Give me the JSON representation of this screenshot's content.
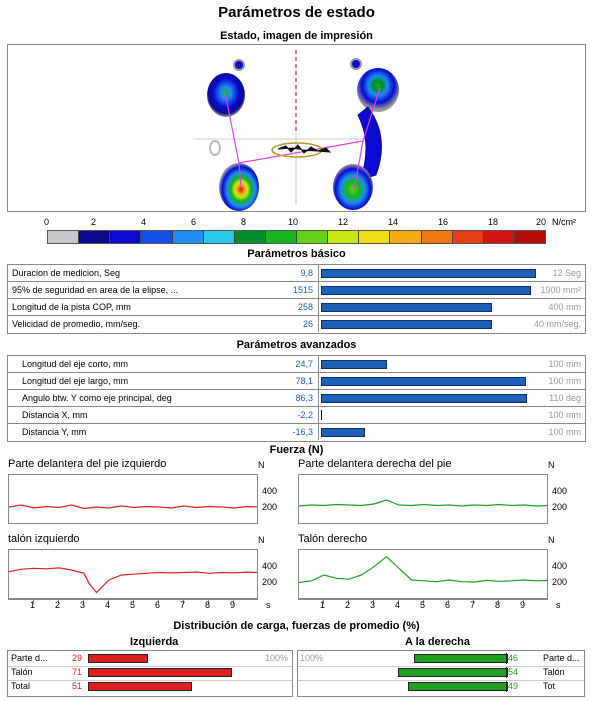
{
  "title": "Parámetros de estado",
  "print_image": {
    "label": "Estado, imagen de impresión"
  },
  "scale": {
    "ticks": [
      "0",
      "2",
      "4",
      "6",
      "8",
      "10",
      "12",
      "14",
      "16",
      "18",
      "20"
    ],
    "unit": "N/cm²",
    "colors": [
      "#c8c8c8",
      "#0a0a8c",
      "#0a0ad2",
      "#1450e6",
      "#1e8cf0",
      "#28c8e6",
      "#008c28",
      "#14b41e",
      "#64d214",
      "#c8e614",
      "#f0dc14",
      "#f5aa14",
      "#f07814",
      "#e63c14",
      "#d21414",
      "#b40a0a"
    ]
  },
  "basic": {
    "heading": "Parámetros básico",
    "rows": [
      {
        "label": "Duracion de medicion, Seg",
        "value": "9,8",
        "max": "12 Seg",
        "fill": 0.82
      },
      {
        "label": "95% de seguridad en area de la elipse, ...",
        "value": "1515",
        "max": "1900 mm²",
        "fill": 0.8
      },
      {
        "label": "Longitud de la pista COP, mm",
        "value": "258",
        "max": "400 mm",
        "fill": 0.65
      },
      {
        "label": "Velicidad de promedio, mm/seg.",
        "value": "26",
        "max": "40 mm/seg.",
        "fill": 0.65
      }
    ]
  },
  "advanced": {
    "heading": "Parámetros avanzados",
    "rows": [
      {
        "label": "Longitud del eje corto, mm",
        "value": "24,7",
        "max": "100 mm",
        "fill": 0.247
      },
      {
        "label": "Longitud del eje largo, mm",
        "value": "78,1",
        "max": "100 mm",
        "fill": 0.781
      },
      {
        "label": "Angulo btw. Y como eje principal, deg",
        "value": "86,3",
        "max": "110 deg",
        "fill": 0.785
      },
      {
        "label": "Distancia X, mm",
        "value": "-2,2",
        "max": "100 mm",
        "fill": 0.022
      },
      {
        "label": "Distancia Y, mm",
        "value": "-16,3",
        "max": "100 mm",
        "fill": 0.163
      }
    ]
  },
  "force": {
    "heading": "Fuerza (N)",
    "unit": "N",
    "time_unit": "s",
    "charts": [
      {
        "name": "Parte delantera del pie izquierdo",
        "color": "#e02020",
        "y_ticks": [
          "400",
          "200"
        ]
      },
      {
        "name": "Parte delantera derecha del pie",
        "color": "#20a020",
        "y_ticks": [
          "400",
          "200"
        ]
      },
      {
        "name": "talón izquierdo",
        "color": "#e02020",
        "y_ticks": [
          "400",
          "200"
        ]
      },
      {
        "name": "Talón derecho",
        "color": "#20a020",
        "y_ticks": [
          "400",
          "200"
        ]
      }
    ],
    "x_ticks": [
      "1",
      "2",
      "3",
      "4",
      "5",
      "6",
      "7",
      "8",
      "9"
    ]
  },
  "chart_data": [
    {
      "type": "line",
      "title": "Parte delantera del pie izquierdo",
      "ylabel": "N",
      "xlabel": "s",
      "ylim": [
        0,
        500
      ],
      "xlim": [
        0,
        10
      ],
      "series": [
        {
          "x": [
            0,
            0.5,
            1,
            1.5,
            2,
            2.5,
            3,
            3.5,
            4,
            4.5,
            5,
            5.5,
            6,
            6.5,
            7,
            7.5,
            8,
            8.5,
            9,
            9.5,
            10
          ],
          "values": [
            180,
            200,
            170,
            185,
            175,
            200,
            165,
            180,
            170,
            190,
            175,
            185,
            180,
            170,
            190,
            175,
            185,
            180,
            170,
            185,
            180
          ]
        }
      ]
    },
    {
      "type": "line",
      "title": "Parte delantera derecha del pie",
      "ylabel": "N",
      "xlabel": "s",
      "ylim": [
        0,
        500
      ],
      "xlim": [
        0,
        10
      ],
      "series": [
        {
          "x": [
            0,
            0.5,
            1,
            1.5,
            2,
            2.5,
            3,
            3.5,
            4,
            4.5,
            5,
            5.5,
            6,
            6.5,
            7,
            7.5,
            8,
            8.5,
            9,
            9.5,
            10
          ],
          "values": [
            190,
            200,
            195,
            205,
            200,
            195,
            210,
            250,
            200,
            195,
            205,
            195,
            200,
            190,
            200,
            195,
            205,
            195,
            200,
            190,
            195
          ]
        }
      ]
    },
    {
      "type": "line",
      "title": "talón izquierdo",
      "ylabel": "N",
      "xlabel": "s",
      "ylim": [
        0,
        600
      ],
      "xlim": [
        0,
        10
      ],
      "series": [
        {
          "x": [
            0,
            0.5,
            1,
            1.5,
            2,
            2.5,
            3,
            3.2,
            3.5,
            4,
            4.5,
            5,
            5.5,
            6,
            6.5,
            7,
            7.5,
            8,
            8.5,
            9,
            9.5,
            10
          ],
          "values": [
            340,
            370,
            380,
            375,
            385,
            360,
            320,
            200,
            90,
            240,
            300,
            310,
            320,
            330,
            325,
            330,
            335,
            320,
            330,
            325,
            335,
            330
          ]
        }
      ]
    },
    {
      "type": "line",
      "title": "Talón derecho",
      "ylabel": "N",
      "xlabel": "s",
      "ylim": [
        0,
        600
      ],
      "xlim": [
        0,
        10
      ],
      "series": [
        {
          "x": [
            0,
            0.5,
            1,
            1.5,
            2,
            2.5,
            3,
            3.5,
            4,
            4.5,
            5,
            5.5,
            6,
            6.5,
            7,
            7.5,
            8,
            8.5,
            9,
            9.5,
            10
          ],
          "values": [
            210,
            230,
            300,
            260,
            250,
            300,
            400,
            520,
            380,
            240,
            230,
            220,
            240,
            220,
            215,
            235,
            225,
            230,
            240,
            230,
            235
          ]
        }
      ]
    }
  ],
  "load": {
    "heading": "Distribución de carga, fuerzas de promedio (%)",
    "left_heading": "Izquierda",
    "right_heading": "A la derecha",
    "left_max": "100%",
    "right_max": "100%",
    "left_color": "#e02020",
    "right_color": "#20a020",
    "rows": [
      {
        "label": "Parte d...",
        "left": "29",
        "left_fill": 0.29,
        "right": "46",
        "right_fill": 0.46,
        "right_label": "Parte d..."
      },
      {
        "label": "Talón",
        "left": "71",
        "left_fill": 0.71,
        "right": "54",
        "right_fill": 0.54,
        "right_label": "Talón"
      },
      {
        "label": "Total",
        "left": "51",
        "left_fill": 0.51,
        "right": "49",
        "right_fill": 0.49,
        "right_label": "Tot"
      }
    ]
  }
}
